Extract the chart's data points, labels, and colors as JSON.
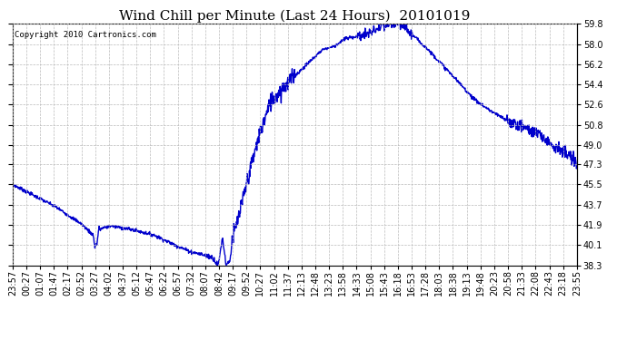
{
  "title": "Wind Chill per Minute (Last 24 Hours)  20101019",
  "copyright_text": "Copyright 2010 Cartronics.com",
  "line_color": "#0000cc",
  "background_color": "#ffffff",
  "plot_bg_color": "#ffffff",
  "ylim": [
    38.3,
    59.8
  ],
  "yticks": [
    38.3,
    40.1,
    41.9,
    43.7,
    45.5,
    47.3,
    49.0,
    50.8,
    52.6,
    54.4,
    56.2,
    58.0,
    59.8
  ],
  "xtick_labels": [
    "23:57",
    "00:27",
    "01:07",
    "01:47",
    "02:17",
    "02:52",
    "03:27",
    "04:02",
    "04:37",
    "05:12",
    "05:47",
    "06:22",
    "06:57",
    "07:32",
    "08:07",
    "08:42",
    "09:17",
    "09:52",
    "10:27",
    "11:02",
    "11:37",
    "12:13",
    "12:48",
    "13:23",
    "13:58",
    "14:33",
    "15:08",
    "15:43",
    "16:18",
    "16:53",
    "17:28",
    "18:03",
    "18:38",
    "19:13",
    "19:48",
    "20:23",
    "20:58",
    "21:33",
    "22:08",
    "22:43",
    "23:18",
    "23:55"
  ],
  "title_fontsize": 11,
  "tick_fontsize": 7,
  "copyright_fontsize": 6.5,
  "line_width": 1.0,
  "grid_color": "#bbbbbb",
  "grid_linestyle": "--",
  "grid_linewidth": 0.5,
  "figwidth": 6.9,
  "figheight": 3.75,
  "dpi": 100
}
